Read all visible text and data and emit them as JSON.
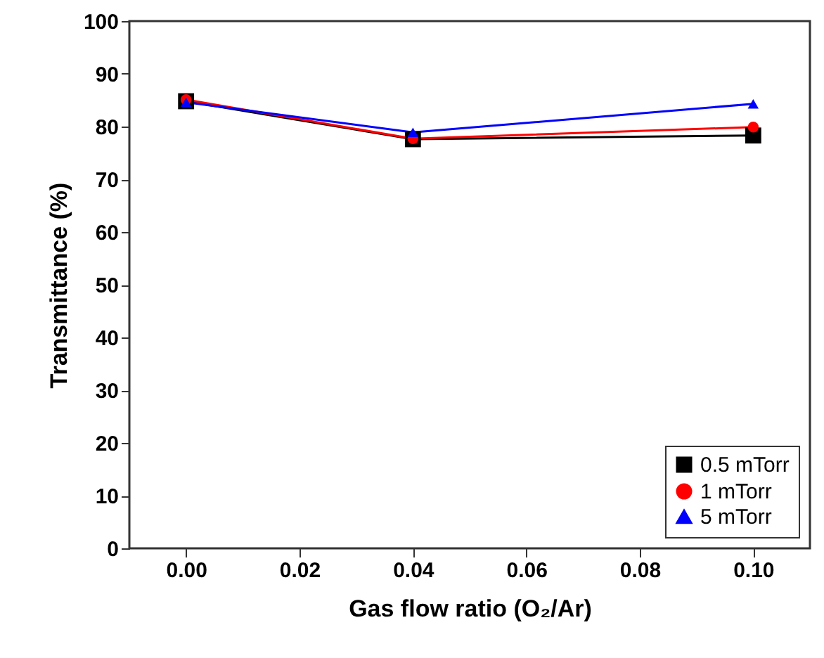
{
  "chart_data": {
    "type": "line",
    "xlabel": "Gas flow ratio (O₂/Ar)",
    "ylabel": "Transmittance (%)",
    "x": [
      0.0,
      0.04,
      0.1
    ],
    "series": [
      {
        "name": "0.5 mTorr",
        "color": "#000000",
        "marker": "square",
        "values": [
          84.8,
          77.6,
          78.3
        ]
      },
      {
        "name": "1 mTorr",
        "color": "#ff0000",
        "marker": "circle",
        "values": [
          85.1,
          77.7,
          79.9
        ]
      },
      {
        "name": "5 mTorr",
        "color": "#0000ff",
        "marker": "triangle",
        "values": [
          84.6,
          78.9,
          84.3
        ]
      }
    ],
    "xlim": [
      -0.01,
      0.11
    ],
    "xticks": [
      {
        "value": 0,
        "label": "0.00"
      },
      {
        "value": 0.02,
        "label": "0.02"
      },
      {
        "value": 0.04,
        "label": "0.04"
      },
      {
        "value": 0.06,
        "label": "0.06"
      },
      {
        "value": 0.08,
        "label": "0.08"
      },
      {
        "value": 0.1,
        "label": "0.10"
      }
    ],
    "ylim": [
      0,
      100
    ],
    "yticks": [
      0,
      10,
      20,
      30,
      40,
      50,
      60,
      70,
      80,
      90,
      100
    ],
    "grid": false,
    "legend": "bottom right",
    "line_style": "solid"
  }
}
